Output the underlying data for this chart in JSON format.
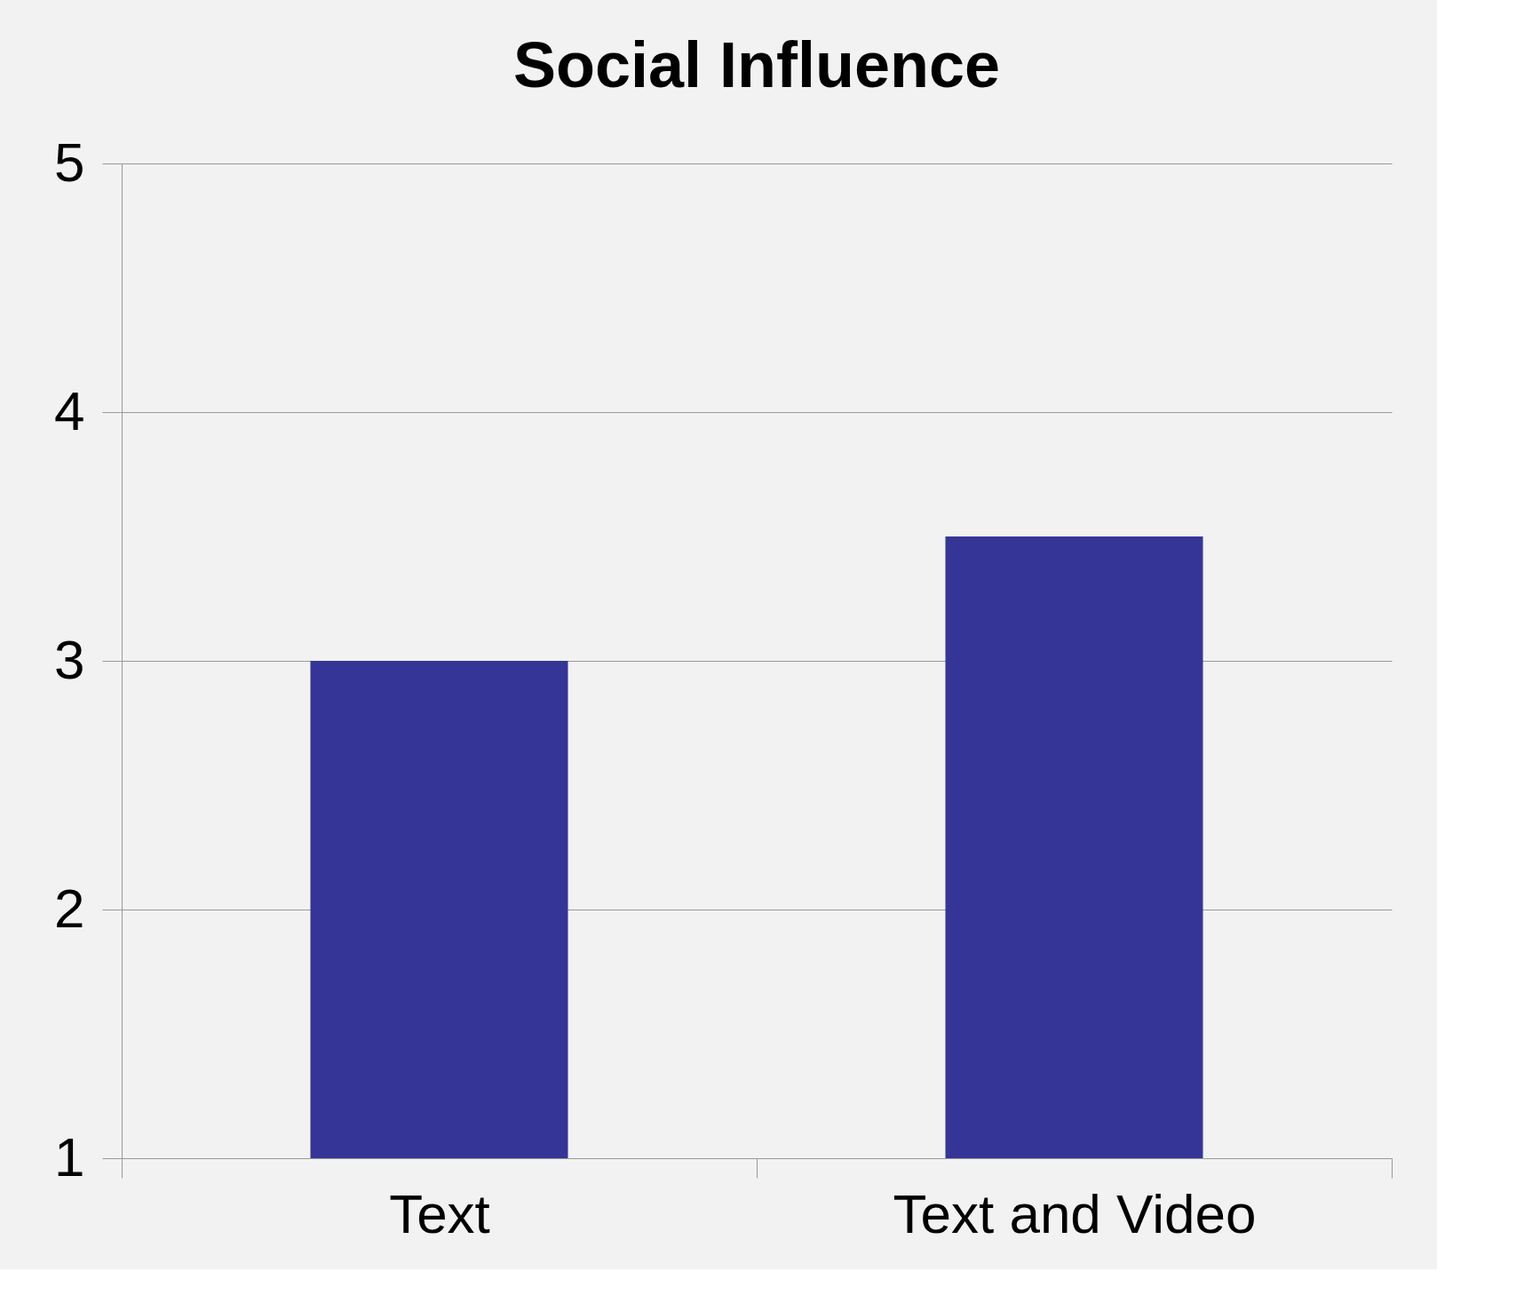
{
  "chart_data": {
    "type": "bar",
    "title": "Social Influence",
    "categories": [
      "Text",
      "Text and Video"
    ],
    "series": [
      {
        "color": "#353597",
        "values": [
          3,
          3.5
        ]
      }
    ],
    "ylim": [
      1,
      5
    ],
    "yticks": [
      1,
      2,
      3,
      4,
      5
    ],
    "grid": "y"
  }
}
